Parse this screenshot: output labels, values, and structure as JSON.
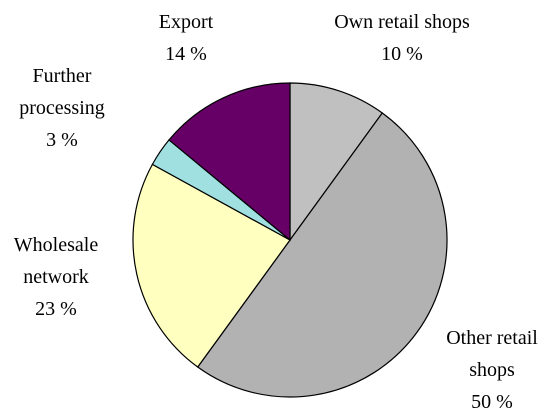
{
  "chart_data": {
    "type": "pie",
    "categories": [
      "Own retail shops",
      "Other retail shops",
      "Wholesale network",
      "Further processing",
      "Export"
    ],
    "values": [
      10,
      50,
      23,
      3,
      14
    ],
    "value_labels": [
      "10 %",
      "50 %",
      "23 %",
      "3 %",
      "14 %"
    ],
    "colors": [
      "#c0c0c0",
      "#b2b2b2",
      "#ffffc0",
      "#a0e0e0",
      "#660066"
    ]
  }
}
